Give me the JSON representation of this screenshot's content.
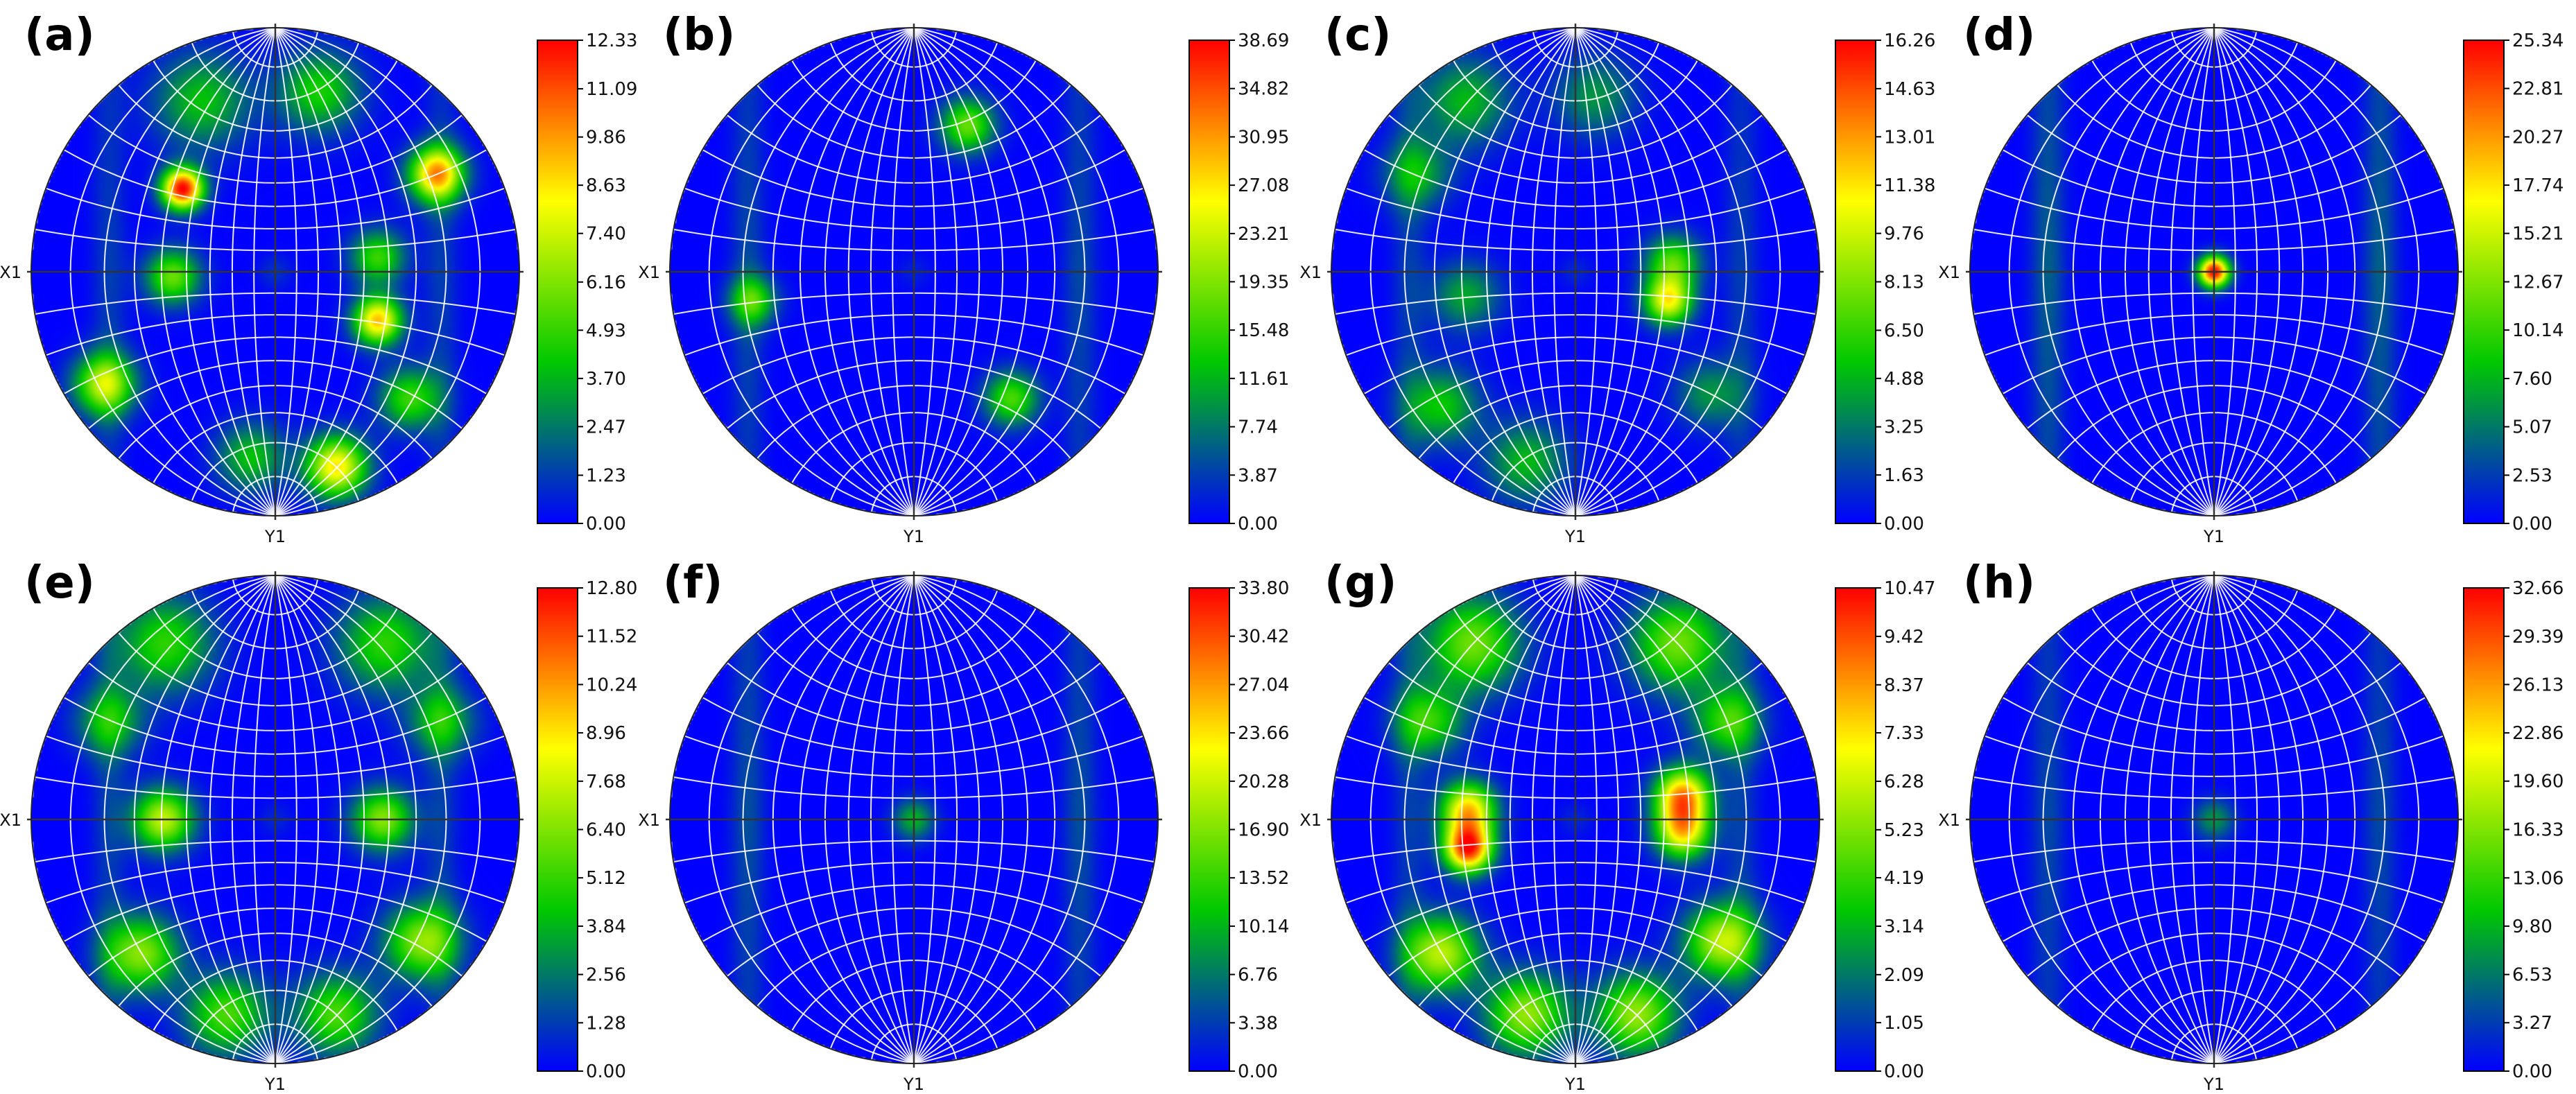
{
  "colormap": [
    "#0000ff",
    "#00c800",
    "#ffff00",
    "#ff0000"
  ],
  "grid_color": "#ffffff",
  "axis_line_color": "#333333",
  "chart_data": [
    {
      "type": "heatmap",
      "panel": "(a)",
      "x_label": "X1",
      "y_label": "Y1",
      "colorbar": {
        "min": 0.0,
        "max": 12.33,
        "ticks": [
          "12.33",
          "11.09",
          "9.86",
          "8.63",
          "7.40",
          "6.16",
          "4.93",
          "3.70",
          "2.47",
          "1.23",
          "0.00"
        ]
      },
      "ring_intensity": 0.1,
      "center_intensity": 0.08,
      "hotspots": [
        {
          "x": -0.38,
          "y": 0.34,
          "value": 12.3,
          "spread": 0.06
        },
        {
          "x": -0.42,
          "y": -0.02,
          "value": 5.8,
          "spread": 0.08
        },
        {
          "x": -0.7,
          "y": -0.46,
          "value": 7.0,
          "spread": 0.09
        },
        {
          "x": -0.3,
          "y": 0.7,
          "value": 4.0,
          "spread": 0.14
        },
        {
          "x": 0.18,
          "y": 0.74,
          "value": 4.5,
          "spread": 0.12
        },
        {
          "x": 0.66,
          "y": 0.4,
          "value": 9.5,
          "spread": 0.08
        },
        {
          "x": 0.42,
          "y": 0.06,
          "value": 5.0,
          "spread": 0.08
        },
        {
          "x": 0.42,
          "y": -0.2,
          "value": 9.2,
          "spread": 0.07
        },
        {
          "x": 0.55,
          "y": -0.52,
          "value": 5.0,
          "spread": 0.09
        },
        {
          "x": 0.25,
          "y": -0.8,
          "value": 8.6,
          "spread": 0.09
        },
        {
          "x": -0.1,
          "y": -0.76,
          "value": 4.0,
          "spread": 0.1
        }
      ]
    },
    {
      "type": "heatmap",
      "panel": "(b)",
      "x_label": "X1",
      "y_label": "Y1",
      "colorbar": {
        "min": 0.0,
        "max": 38.69,
        "ticks": [
          "38.69",
          "34.82",
          "30.95",
          "27.08",
          "23.21",
          "19.35",
          "15.48",
          "11.61",
          "7.74",
          "3.87",
          "0.00"
        ]
      },
      "ring_intensity": 0.12,
      "center_intensity": 0.05,
      "hotspots": [
        {
          "x": 0.22,
          "y": 0.6,
          "value": 18.0,
          "spread": 0.08
        },
        {
          "x": -0.66,
          "y": -0.12,
          "value": 14.5,
          "spread": 0.07
        },
        {
          "x": 0.4,
          "y": -0.52,
          "value": 16.5,
          "spread": 0.08
        }
      ]
    },
    {
      "type": "heatmap",
      "panel": "(c)",
      "x_label": "X1",
      "y_label": "Y1",
      "colorbar": {
        "min": 0.0,
        "max": 16.26,
        "ticks": [
          "16.26",
          "14.63",
          "13.01",
          "11.38",
          "9.76",
          "8.13",
          "6.50",
          "4.88",
          "3.25",
          "1.63",
          "0.00"
        ]
      },
      "ring_intensity": 0.1,
      "center_intensity": 0.06,
      "hotspots": [
        {
          "x": -0.45,
          "y": 0.7,
          "value": 5.0,
          "spread": 0.13
        },
        {
          "x": 0.08,
          "y": 0.72,
          "value": 4.0,
          "spread": 0.12
        },
        {
          "x": -0.65,
          "y": 0.4,
          "value": 4.5,
          "spread": 0.1
        },
        {
          "x": -0.45,
          "y": -0.1,
          "value": 4.5,
          "spread": 0.1
        },
        {
          "x": 0.4,
          "y": 0.04,
          "value": 7.0,
          "spread": 0.08
        },
        {
          "x": 0.38,
          "y": -0.12,
          "value": 10.5,
          "spread": 0.07
        },
        {
          "x": -0.55,
          "y": -0.55,
          "value": 5.5,
          "spread": 0.11
        },
        {
          "x": -0.2,
          "y": -0.78,
          "value": 5.0,
          "spread": 0.12
        },
        {
          "x": 0.55,
          "y": -0.5,
          "value": 4.0,
          "spread": 0.1
        }
      ]
    },
    {
      "type": "heatmap",
      "panel": "(d)",
      "x_label": "X1",
      "y_label": "Y1",
      "colorbar": {
        "min": 0.0,
        "max": 25.34,
        "ticks": [
          "25.34",
          "22.81",
          "20.27",
          "17.74",
          "15.21",
          "12.67",
          "10.14",
          "7.60",
          "5.07",
          "2.53",
          "0.00"
        ]
      },
      "ring_intensity": 0.16,
      "center_intensity": 0.0,
      "hotspots": [
        {
          "x": 0.0,
          "y": 0.0,
          "value": 25.3,
          "spread": 0.045
        }
      ]
    },
    {
      "type": "heatmap",
      "panel": "(e)",
      "x_label": "X1",
      "y_label": "Y1",
      "colorbar": {
        "min": 0.0,
        "max": 12.8,
        "ticks": [
          "12.80",
          "11.52",
          "10.24",
          "8.96",
          "7.68",
          "6.40",
          "5.12",
          "3.84",
          "2.56",
          "1.28",
          "0.00"
        ]
      },
      "ring_intensity": 0.1,
      "center_intensity": 0.06,
      "hotspots": [
        {
          "x": -0.45,
          "y": 0.72,
          "value": 5.0,
          "spread": 0.14
        },
        {
          "x": 0.45,
          "y": 0.72,
          "value": 5.0,
          "spread": 0.14
        },
        {
          "x": -0.68,
          "y": 0.4,
          "value": 4.0,
          "spread": 0.1
        },
        {
          "x": 0.68,
          "y": 0.4,
          "value": 4.0,
          "spread": 0.1
        },
        {
          "x": -0.46,
          "y": 0.0,
          "value": 7.5,
          "spread": 0.09
        },
        {
          "x": 0.44,
          "y": 0.0,
          "value": 6.5,
          "spread": 0.09
        },
        {
          "x": -0.55,
          "y": -0.55,
          "value": 6.5,
          "spread": 0.11
        },
        {
          "x": 0.6,
          "y": -0.5,
          "value": 6.5,
          "spread": 0.11
        },
        {
          "x": -0.2,
          "y": -0.8,
          "value": 5.5,
          "spread": 0.12
        },
        {
          "x": 0.25,
          "y": -0.8,
          "value": 5.5,
          "spread": 0.12
        }
      ]
    },
    {
      "type": "heatmap",
      "panel": "(f)",
      "x_label": "X1",
      "y_label": "Y1",
      "colorbar": {
        "min": 0.0,
        "max": 33.8,
        "ticks": [
          "33.80",
          "30.42",
          "27.04",
          "23.66",
          "20.28",
          "16.90",
          "13.52",
          "10.14",
          "6.76",
          "3.38",
          "0.00"
        ]
      },
      "ring_intensity": 0.13,
      "center_intensity": 0.0,
      "hotspots": [
        {
          "x": 0.0,
          "y": 0.0,
          "value": 10.0,
          "spread": 0.06
        }
      ]
    },
    {
      "type": "heatmap",
      "panel": "(g)",
      "x_label": "X1",
      "y_label": "Y1",
      "colorbar": {
        "min": 0.0,
        "max": 10.47,
        "ticks": [
          "10.47",
          "9.42",
          "8.37",
          "7.33",
          "6.28",
          "5.23",
          "4.19",
          "3.14",
          "2.09",
          "1.05",
          "0.00"
        ]
      },
      "ring_intensity": 0.1,
      "center_intensity": 0.06,
      "hotspots": [
        {
          "x": -0.42,
          "y": 0.72,
          "value": 5.0,
          "spread": 0.14
        },
        {
          "x": 0.42,
          "y": 0.72,
          "value": 5.0,
          "spread": 0.14
        },
        {
          "x": -0.6,
          "y": 0.4,
          "value": 4.0,
          "spread": 0.1
        },
        {
          "x": 0.62,
          "y": 0.4,
          "value": 4.0,
          "spread": 0.1
        },
        {
          "x": -0.44,
          "y": 0.04,
          "value": 7.5,
          "spread": 0.08
        },
        {
          "x": -0.44,
          "y": -0.12,
          "value": 9.8,
          "spread": 0.07
        },
        {
          "x": 0.44,
          "y": 0.1,
          "value": 8.0,
          "spread": 0.08
        },
        {
          "x": 0.44,
          "y": -0.05,
          "value": 7.0,
          "spread": 0.08
        },
        {
          "x": -0.55,
          "y": -0.55,
          "value": 6.0,
          "spread": 0.11
        },
        {
          "x": 0.6,
          "y": -0.5,
          "value": 6.0,
          "spread": 0.11
        },
        {
          "x": -0.2,
          "y": -0.8,
          "value": 5.5,
          "spread": 0.12
        },
        {
          "x": 0.25,
          "y": -0.8,
          "value": 5.5,
          "spread": 0.12
        }
      ]
    },
    {
      "type": "heatmap",
      "panel": "(h)",
      "x_label": "X1",
      "y_label": "Y1",
      "colorbar": {
        "min": 0.0,
        "max": 32.66,
        "ticks": [
          "32.66",
          "29.39",
          "26.13",
          "22.86",
          "19.60",
          "16.33",
          "13.06",
          "9.80",
          "6.53",
          "3.27",
          "0.00"
        ]
      },
      "ring_intensity": 0.12,
      "center_intensity": 0.0,
      "hotspots": [
        {
          "x": 0.0,
          "y": 0.0,
          "value": 8.0,
          "spread": 0.06
        }
      ]
    }
  ]
}
